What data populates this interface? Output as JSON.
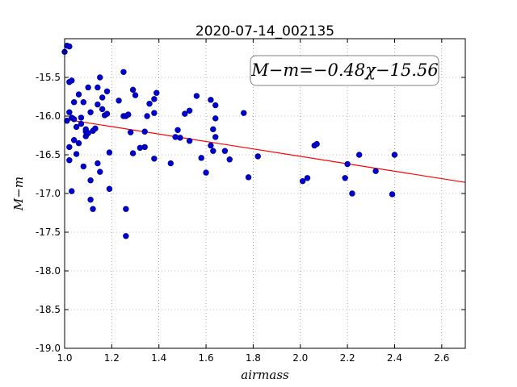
{
  "chart_data": {
    "type": "scatter",
    "title": "2020-07-14_002135",
    "xlabel": "airmass",
    "ylabel": "M−m",
    "xlim": [
      1.0,
      2.7
    ],
    "ylim": [
      -19.0,
      -15.0
    ],
    "y_inverted": true,
    "xticks": [
      "1.0",
      "1.2",
      "1.4",
      "1.6",
      "1.8",
      "2.0",
      "2.2",
      "2.4",
      "2.6"
    ],
    "yticks": [
      "-15.5",
      "-16.0",
      "-16.5",
      "-17.0",
      "-17.5",
      "-18.0",
      "-18.5",
      "-19.0"
    ],
    "grid": true,
    "annotation": "M−m=−0.48χ−15.56",
    "fit": {
      "slope": -0.48,
      "intercept": -15.56,
      "color": "#ff0000"
    },
    "marker_color": "#0000cc",
    "points": [
      [
        1.0,
        -15.17
      ],
      [
        1.01,
        -15.09
      ],
      [
        1.02,
        -15.1
      ],
      [
        1.02,
        -15.56
      ],
      [
        1.03,
        -15.54
      ],
      [
        1.04,
        -15.82
      ],
      [
        1.02,
        -15.95
      ],
      [
        1.01,
        -16.06
      ],
      [
        1.03,
        -16.02
      ],
      [
        1.04,
        -16.04
      ],
      [
        1.05,
        -16.14
      ],
      [
        1.04,
        -16.31
      ],
      [
        1.06,
        -16.35
      ],
      [
        1.07,
        -16.1
      ],
      [
        1.05,
        -16.49
      ],
      [
        1.02,
        -16.4
      ],
      [
        1.02,
        -16.57
      ],
      [
        1.03,
        -16.97
      ],
      [
        1.06,
        -15.72
      ],
      [
        1.08,
        -15.82
      ],
      [
        1.07,
        -16.02
      ],
      [
        1.09,
        -16.2
      ],
      [
        1.09,
        -16.26
      ],
      [
        1.08,
        -16.65
      ],
      [
        1.1,
        -15.63
      ],
      [
        1.09,
        -16.17
      ],
      [
        1.1,
        -16.22
      ],
      [
        1.11,
        -15.95
      ],
      [
        1.12,
        -16.19
      ],
      [
        1.13,
        -16.16
      ],
      [
        1.14,
        -15.63
      ],
      [
        1.14,
        -15.85
      ],
      [
        1.15,
        -15.5
      ],
      [
        1.16,
        -15.76
      ],
      [
        1.16,
        -15.91
      ],
      [
        1.17,
        -15.99
      ],
      [
        1.18,
        -15.68
      ],
      [
        1.18,
        -15.97
      ],
      [
        1.19,
        -16.47
      ],
      [
        1.14,
        -16.61
      ],
      [
        1.15,
        -16.72
      ],
      [
        1.11,
        -16.83
      ],
      [
        1.19,
        -16.94
      ],
      [
        1.11,
        -17.08
      ],
      [
        1.12,
        -17.2
      ],
      [
        1.23,
        -15.8
      ],
      [
        1.25,
        -15.43
      ],
      [
        1.25,
        -16.0
      ],
      [
        1.26,
        -16.0
      ],
      [
        1.27,
        -15.98
      ],
      [
        1.28,
        -16.21
      ],
      [
        1.29,
        -16.48
      ],
      [
        1.29,
        -15.66
      ],
      [
        1.3,
        -15.73
      ],
      [
        1.32,
        -16.41
      ],
      [
        1.34,
        -16.4
      ],
      [
        1.34,
        -16.2
      ],
      [
        1.35,
        -16.0
      ],
      [
        1.36,
        -15.84
      ],
      [
        1.38,
        -15.78
      ],
      [
        1.38,
        -15.96
      ],
      [
        1.39,
        -15.7
      ],
      [
        1.38,
        -16.55
      ],
      [
        1.45,
        -16.61
      ],
      [
        1.47,
        -16.27
      ],
      [
        1.48,
        -16.18
      ],
      [
        1.49,
        -16.28
      ],
      [
        1.51,
        -15.97
      ],
      [
        1.53,
        -15.93
      ],
      [
        1.53,
        -16.32
      ],
      [
        1.56,
        -15.74
      ],
      [
        1.58,
        -16.54
      ],
      [
        1.6,
        -16.73
      ],
      [
        1.62,
        -16.38
      ],
      [
        1.62,
        -15.79
      ],
      [
        1.63,
        -16.45
      ],
      [
        1.63,
        -16.17
      ],
      [
        1.64,
        -16.27
      ],
      [
        1.64,
        -15.86
      ],
      [
        1.64,
        -16.03
      ],
      [
        1.68,
        -16.45
      ],
      [
        1.7,
        -16.56
      ],
      [
        1.76,
        -15.96
      ],
      [
        1.78,
        -16.79
      ],
      [
        1.82,
        -16.52
      ],
      [
        2.01,
        -16.84
      ],
      [
        2.03,
        -16.8
      ],
      [
        2.06,
        -16.38
      ],
      [
        2.07,
        -16.36
      ],
      [
        2.19,
        -16.8
      ],
      [
        2.2,
        -16.62
      ],
      [
        2.22,
        -17.0
      ],
      [
        2.25,
        -16.5
      ],
      [
        2.32,
        -16.71
      ],
      [
        2.39,
        -17.01
      ],
      [
        2.4,
        -16.5
      ],
      [
        1.26,
        -17.2
      ],
      [
        1.26,
        -17.55
      ]
    ]
  }
}
